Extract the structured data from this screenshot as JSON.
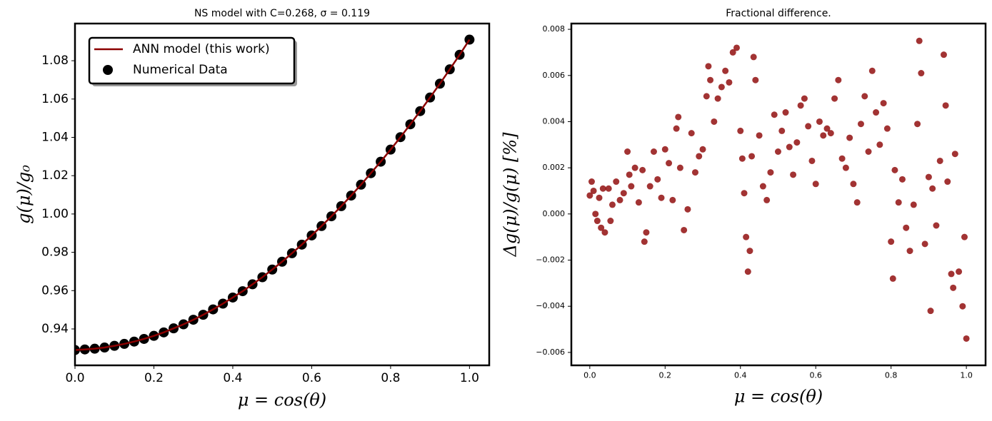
{
  "chart_data": [
    {
      "type": "line",
      "title": "NS model with C=0.268, σ = 0.119",
      "x_label": "μ = cos(θ)",
      "y_label": "g(μ)/g₀",
      "x": [
        0,
        0.025,
        0.05,
        0.075,
        0.1,
        0.125,
        0.15,
        0.175,
        0.2,
        0.225,
        0.25,
        0.275,
        0.3,
        0.325,
        0.35,
        0.375,
        0.4,
        0.425,
        0.45,
        0.475,
        0.5,
        0.525,
        0.55,
        0.575,
        0.6,
        0.625,
        0.65,
        0.675,
        0.7,
        0.725,
        0.75,
        0.775,
        0.8,
        0.825,
        0.85,
        0.875,
        0.9,
        0.925,
        0.95,
        0.975,
        1.0
      ],
      "series": [
        {
          "name": "Numerical Data",
          "type": "scatter",
          "color": "#000000",
          "values": [
            0.929,
            0.9293,
            0.9297,
            0.9303,
            0.9312,
            0.9322,
            0.9334,
            0.9348,
            0.9364,
            0.9382,
            0.9403,
            0.9424,
            0.9448,
            0.9474,
            0.9502,
            0.9532,
            0.9564,
            0.9597,
            0.9633,
            0.967,
            0.971,
            0.9751,
            0.9795,
            0.984,
            0.9888,
            0.9937,
            0.9988,
            1.0041,
            1.0096,
            1.0153,
            1.0213,
            1.0273,
            1.0336,
            1.0401,
            1.0468,
            1.0537,
            1.0608,
            1.068,
            1.0755,
            1.0831,
            1.091
          ]
        },
        {
          "name": "ANN model (this work)",
          "type": "line",
          "color": "#8b0000",
          "values": [
            0.929,
            0.9293,
            0.9297,
            0.9303,
            0.9312,
            0.9322,
            0.9334,
            0.9348,
            0.9364,
            0.9382,
            0.9403,
            0.9424,
            0.9448,
            0.9474,
            0.9502,
            0.9532,
            0.9564,
            0.9597,
            0.9633,
            0.967,
            0.971,
            0.9751,
            0.9795,
            0.984,
            0.9888,
            0.9937,
            0.9988,
            1.0041,
            1.0096,
            1.0153,
            1.0213,
            1.0273,
            1.0336,
            1.0401,
            1.0468,
            1.0537,
            1.0608,
            1.068,
            1.0755,
            1.0831,
            1.091
          ]
        }
      ],
      "legend": "upper left",
      "xlim": [
        0,
        1.05
      ],
      "ylim": [
        0.921,
        1.0994
      ],
      "xticks": [
        {
          "value": 0,
          "label": "0.0"
        },
        0.2,
        0.4,
        0.6,
        0.8,
        {
          "value": 1,
          "label": "1.0"
        }
      ],
      "yticks": [
        0.94,
        0.96,
        0.98,
        {
          "value": 1,
          "label": "1.00"
        },
        1.02,
        1.04,
        1.06,
        1.08
      ]
    },
    {
      "type": "scatter",
      "title": "Fractional difference.",
      "x_label": "μ = cos(θ)",
      "y_label": "Δg(μ)/g(μ)  [%]",
      "color": "#8b0000",
      "x": [
        0.0,
        0.005,
        0.01,
        0.015,
        0.02,
        0.025,
        0.03,
        0.035,
        0.04,
        0.05,
        0.055,
        0.06,
        0.07,
        0.08,
        0.09,
        0.1,
        0.105,
        0.11,
        0.12,
        0.13,
        0.14,
        0.145,
        0.15,
        0.16,
        0.17,
        0.18,
        0.19,
        0.2,
        0.21,
        0.22,
        0.23,
        0.235,
        0.24,
        0.25,
        0.26,
        0.27,
        0.28,
        0.29,
        0.3,
        0.31,
        0.315,
        0.32,
        0.33,
        0.34,
        0.35,
        0.36,
        0.37,
        0.38,
        0.39,
        0.4,
        0.405,
        0.41,
        0.415,
        0.42,
        0.425,
        0.43,
        0.435,
        0.44,
        0.45,
        0.46,
        0.47,
        0.48,
        0.49,
        0.5,
        0.51,
        0.52,
        0.53,
        0.54,
        0.55,
        0.56,
        0.57,
        0.58,
        0.59,
        0.6,
        0.61,
        0.62,
        0.63,
        0.64,
        0.65,
        0.66,
        0.67,
        0.68,
        0.69,
        0.7,
        0.71,
        0.72,
        0.73,
        0.74,
        0.75,
        0.76,
        0.77,
        0.78,
        0.79,
        0.8,
        0.805,
        0.81,
        0.82,
        0.83,
        0.84,
        0.85,
        0.86,
        0.87,
        0.875,
        0.88,
        0.89,
        0.9,
        0.905,
        0.91,
        0.92,
        0.93,
        0.94,
        0.945,
        0.95,
        0.96,
        0.965,
        0.97,
        0.98,
        0.99,
        1.0,
        0.995
      ],
      "values": [
        0.0008,
        0.0014,
        0.001,
        0.0,
        -0.0003,
        0.0007,
        -0.0006,
        0.0011,
        -0.0008,
        0.0011,
        -0.0003,
        0.0004,
        0.0014,
        0.0006,
        0.0009,
        0.0027,
        0.0017,
        0.0012,
        0.002,
        0.0005,
        0.0019,
        -0.0012,
        -0.0008,
        0.0012,
        0.0027,
        0.0015,
        0.0007,
        0.0028,
        0.0022,
        0.0006,
        0.0037,
        0.0042,
        0.002,
        -0.0007,
        0.0002,
        0.0035,
        0.0018,
        0.0025,
        0.0028,
        0.0051,
        0.0064,
        0.0058,
        0.004,
        0.005,
        0.0055,
        0.0062,
        0.0057,
        0.007,
        0.0072,
        0.0036,
        0.0024,
        0.0009,
        -0.001,
        -0.0025,
        -0.0016,
        0.0025,
        0.0068,
        0.0058,
        0.0034,
        0.0012,
        0.0006,
        0.0018,
        0.0043,
        0.0027,
        0.0036,
        0.0044,
        0.0029,
        0.0017,
        0.0031,
        0.0047,
        0.005,
        0.0038,
        0.0023,
        0.0013,
        0.004,
        0.0034,
        0.0037,
        0.0035,
        0.005,
        0.0058,
        0.0024,
        0.002,
        0.0033,
        0.0013,
        0.0005,
        0.0039,
        0.0051,
        0.0027,
        0.0062,
        0.0044,
        0.003,
        0.0048,
        0.0037,
        -0.0012,
        -0.0028,
        0.0019,
        0.0005,
        0.0015,
        -0.0006,
        -0.0016,
        0.0004,
        0.0039,
        0.0075,
        0.0061,
        -0.0013,
        0.0016,
        -0.0042,
        0.0011,
        -0.0005,
        0.0023,
        0.0069,
        0.0047,
        0.0014,
        -0.0026,
        -0.0032,
        0.0026,
        -0.0025,
        -0.004,
        -0.0054,
        -0.001
      ],
      "xlim": [
        -0.049,
        1.051
      ],
      "ylim": [
        -0.00656,
        0.00825
      ],
      "xticks": [
        {
          "value": 0,
          "label": "0.0"
        },
        0.2,
        0.4,
        0.6,
        0.8,
        {
          "value": 1,
          "label": "1.0"
        }
      ],
      "yticks": [
        {
          "value": -0.006,
          "label": "−0.006"
        },
        {
          "value": -0.004,
          "label": "−0.004"
        },
        {
          "value": -0.002,
          "label": "−0.002"
        },
        {
          "value": 0,
          "label": "0.000"
        },
        0.002,
        0.004,
        0.006,
        0.008
      ]
    }
  ]
}
